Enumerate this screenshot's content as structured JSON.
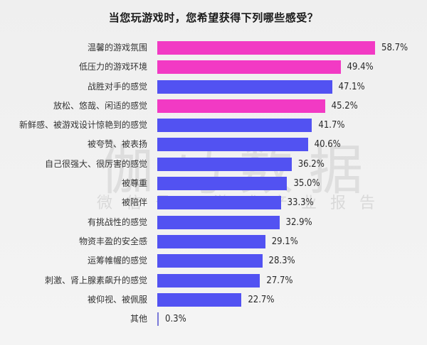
{
  "title": "当您玩游戏时，您希望获得下列哪些感受？",
  "watermark": {
    "main": "伽马数据",
    "sub": "微信号：游戏产业报告"
  },
  "colors": {
    "highlight": "#F23AC4",
    "default": "#5252F2",
    "background": "#F0F0F0"
  },
  "chart_data": {
    "type": "bar",
    "orientation": "horizontal",
    "title": "当您玩游戏时，您希望获得下列哪些感受？",
    "xlabel": "",
    "ylabel": "",
    "unit": "%",
    "grid": false,
    "legend": null,
    "categories": [
      "温馨的游戏氛围",
      "低压力的游戏环境",
      "战胜对手的感觉",
      "放松、悠哉、闲适的感觉",
      "新鲜感、被游戏设计惊艳到的感觉",
      "被夸赞、被表扬",
      "自己很强大、很厉害的感觉",
      "被尊重",
      "被陪伴",
      "有挑战性的感觉",
      "物资丰盈的安全感",
      "运筹帷幄的感觉",
      "刺激、肾上腺素飙升的感觉",
      "被仰视、被佩服",
      "其他"
    ],
    "values": [
      58.7,
      49.4,
      47.1,
      45.2,
      41.7,
      40.6,
      36.2,
      35.0,
      33.3,
      32.9,
      29.1,
      28.3,
      27.7,
      22.7,
      0.3
    ],
    "labels": [
      "58.7%",
      "49.4%",
      "47.1%",
      "45.2%",
      "41.7%",
      "40.6%",
      "36.2%",
      "35.0%",
      "33.3%",
      "32.9%",
      "29.1%",
      "28.3%",
      "27.7%",
      "22.7%",
      "0.3%"
    ],
    "highlighted": [
      true,
      true,
      false,
      true,
      false,
      false,
      false,
      false,
      false,
      false,
      false,
      false,
      false,
      false,
      false
    ],
    "xlim": [
      0,
      60
    ]
  }
}
